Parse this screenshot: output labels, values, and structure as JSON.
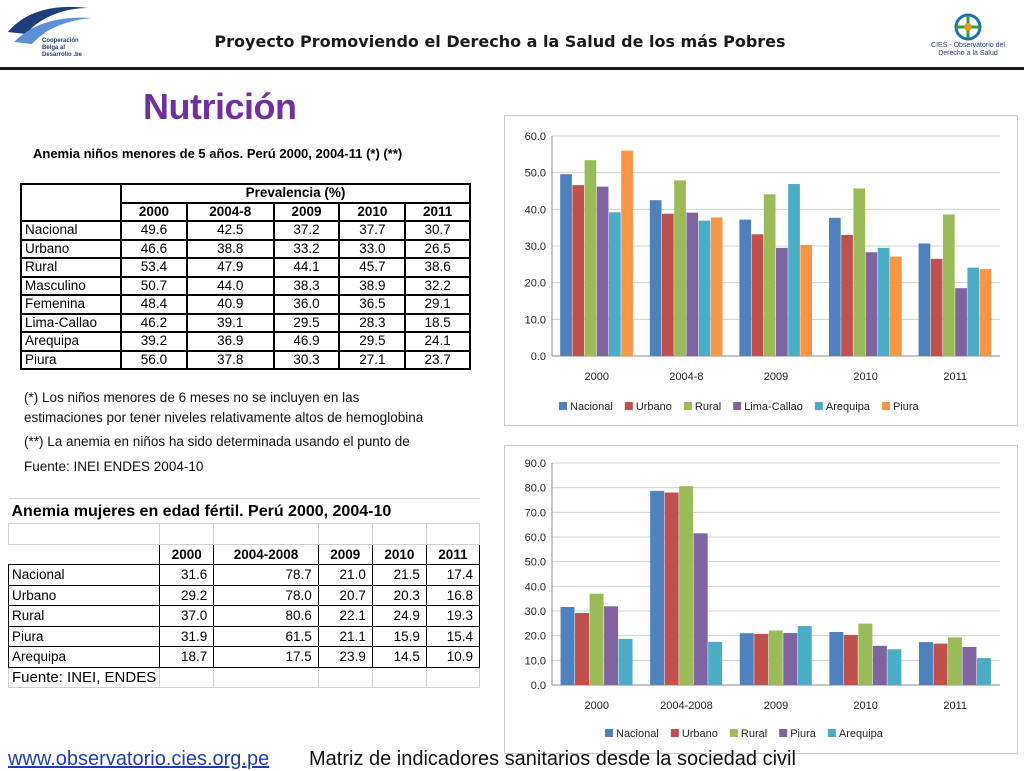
{
  "header": {
    "title": "Proyecto Promoviendo el Derecho a la Salud de los más Pobres",
    "left_logo_text": "Cooperación Belga al Desarrollo .be",
    "right_logo_text": "CIES - Observatorio del Derecho a la Salud",
    "colors": {
      "accent": "#7030a0",
      "logo_blue": "#1f3f7a"
    }
  },
  "page_title": "Nutrición",
  "table_children": {
    "caption": "Anemia niños menores de 5 años. Perú 2000, 2004-11 (*) (**)",
    "group_header": "Prevalencia (%)",
    "columns": [
      "2000",
      "2004-8",
      "2009",
      "2010",
      "2011"
    ],
    "rows": [
      {
        "label": "Nacional",
        "values": [
          "49.6",
          "42.5",
          "37.2",
          "37.7",
          "30.7"
        ]
      },
      {
        "label": "Urbano",
        "values": [
          "46.6",
          "38.8",
          "33.2",
          "33.0",
          "26.5"
        ]
      },
      {
        "label": "Rural",
        "values": [
          "53.4",
          "47.9",
          "44.1",
          "45.7",
          "38.6"
        ]
      },
      {
        "label": "Masculino",
        "values": [
          "50.7",
          "44.0",
          "38.3",
          "38.9",
          "32.2"
        ]
      },
      {
        "label": "Femenina",
        "values": [
          "48.4",
          "40.9",
          "36.0",
          "36.5",
          "29.1"
        ]
      },
      {
        "label": "Lima-Callao",
        "values": [
          "46.2",
          "39.1",
          "29.5",
          "28.3",
          "18.5"
        ]
      },
      {
        "label": "Arequipa",
        "values": [
          "39.2",
          "36.9",
          "46.9",
          "29.5",
          "24.1"
        ]
      },
      {
        "label": "Piura",
        "values": [
          "56.0",
          "37.8",
          "30.3",
          "27.1",
          "23.7"
        ]
      }
    ]
  },
  "notes": {
    "note1_line1": "(*) Los niños menores de 6 meses no se incluyen en las",
    "note1_line2": "estimaciones por tener niveles relativamente altos de hemoglobina",
    "note2": "(**) La anemia en niños ha sido determinada usando el punto de",
    "source": "Fuente: INEI ENDES 2004-10"
  },
  "table_women": {
    "caption": "Anemia mujeres en edad fértil. Perú 2000, 2004-10",
    "columns": [
      "2000",
      "2004-2008",
      "2009",
      "2010",
      "2011"
    ],
    "rows": [
      {
        "label": "Nacional",
        "values": [
          "31.6",
          "78.7",
          "21.0",
          "21.5",
          "17.4"
        ]
      },
      {
        "label": "Urbano",
        "values": [
          "29.2",
          "78.0",
          "20.7",
          "20.3",
          "16.8"
        ]
      },
      {
        "label": "Rural",
        "values": [
          "37.0",
          "80.6",
          "22.1",
          "24.9",
          "19.3"
        ]
      },
      {
        "label": "Piura",
        "values": [
          "31.9",
          "61.5",
          "21.1",
          "15.9",
          "15.4"
        ]
      },
      {
        "label": "Arequipa",
        "values": [
          "18.7",
          "17.5",
          "23.9",
          "14.5",
          "10.9"
        ]
      }
    ],
    "source": "Fuente: INEI, ENDES"
  },
  "chart_data": [
    {
      "type": "bar",
      "categories": [
        "2000",
        "2004-8",
        "2009",
        "2010",
        "2011"
      ],
      "ylim": [
        0,
        60
      ],
      "yticks": [
        "0.0",
        "10.0",
        "20.0",
        "30.0",
        "40.0",
        "50.0",
        "60.0"
      ],
      "grid": true,
      "legend": "bottom",
      "series": [
        {
          "name": "Nacional",
          "color": "#4f81bd",
          "values": [
            49.6,
            42.5,
            37.2,
            37.7,
            30.7
          ]
        },
        {
          "name": "Urbano",
          "color": "#c0504d",
          "values": [
            46.6,
            38.8,
            33.2,
            33.0,
            26.5
          ]
        },
        {
          "name": "Rural",
          "color": "#9bbb59",
          "values": [
            53.4,
            47.9,
            44.1,
            45.7,
            38.6
          ]
        },
        {
          "name": "Lima-Callao",
          "color": "#8064a2",
          "values": [
            46.2,
            39.1,
            29.5,
            28.3,
            18.5
          ]
        },
        {
          "name": "Arequipa",
          "color": "#4bacc6",
          "values": [
            39.2,
            36.9,
            46.9,
            29.5,
            24.1
          ]
        },
        {
          "name": "Piura",
          "color": "#f79646",
          "values": [
            56.0,
            37.8,
            30.3,
            27.1,
            23.7
          ]
        }
      ]
    },
    {
      "type": "bar",
      "categories": [
        "2000",
        "2004-2008",
        "2009",
        "2010",
        "2011"
      ],
      "ylim": [
        0,
        90
      ],
      "yticks": [
        "0.0",
        "10.0",
        "20.0",
        "30.0",
        "40.0",
        "50.0",
        "60.0",
        "70.0",
        "80.0",
        "90.0"
      ],
      "grid": true,
      "legend": "bottom",
      "series": [
        {
          "name": "Nacional",
          "color": "#4f81bd",
          "values": [
            31.6,
            78.7,
            21.0,
            21.5,
            17.4
          ]
        },
        {
          "name": "Urbano",
          "color": "#c0504d",
          "values": [
            29.2,
            78.0,
            20.7,
            20.3,
            16.8
          ]
        },
        {
          "name": "Rural",
          "color": "#9bbb59",
          "values": [
            37.0,
            80.6,
            22.1,
            24.9,
            19.3
          ]
        },
        {
          "name": "Piura",
          "color": "#8064a2",
          "values": [
            31.9,
            61.5,
            21.1,
            15.9,
            15.4
          ]
        },
        {
          "name": "Arequipa",
          "color": "#4bacc6",
          "values": [
            18.7,
            17.5,
            23.9,
            14.5,
            10.9
          ]
        }
      ]
    }
  ],
  "footer": {
    "url": "www.observatorio.cies.org.pe",
    "text": "Matriz de indicadores sanitarios desde la sociedad civil"
  }
}
